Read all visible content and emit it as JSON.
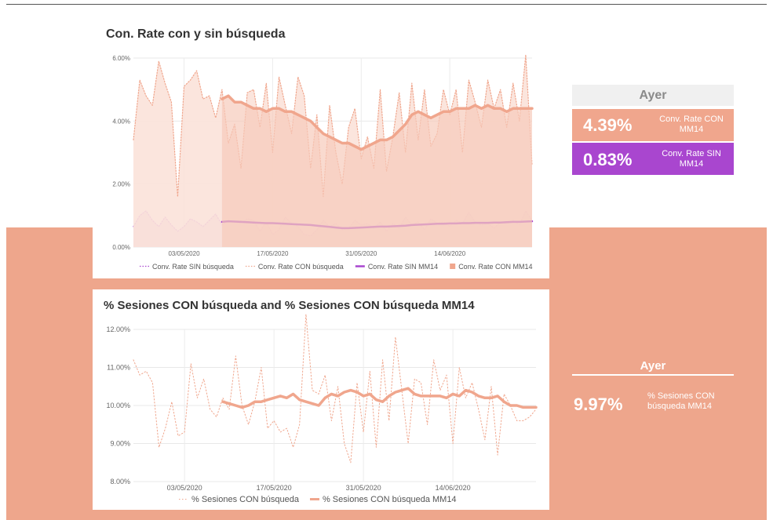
{
  "colors": {
    "band": "#eea68c",
    "salmon": "#f0a68d",
    "salmon_fill": "#f7cabb",
    "salmon_bg_fill": "#fbe2d9",
    "purple": "#a946cf",
    "purple_fill": "#e6bcd6",
    "ayer_bg": "#f0f0f0",
    "ayer_text": "#8a8a8a"
  },
  "chart_data": [
    {
      "type": "area",
      "title": "Con. Rate con y sin búsqueda",
      "xlabel": "",
      "ylabel": "",
      "x_ticks": [
        "03/05/2020",
        "17/05/2020",
        "31/05/2020",
        "14/06/2020"
      ],
      "y_ticks": [
        "0.00%",
        "2.00%",
        "4.00%",
        "6.00%"
      ],
      "ylim": [
        0,
        6
      ],
      "y_unit": "%",
      "x_start": "2020-04-25",
      "x_end": "2020-06-27",
      "grid": true,
      "legend_position": "bottom",
      "series": [
        {
          "name": "Conv. Rate SIN búsqueda",
          "style": "dotted-line-area",
          "values": [
            0.65,
            1.0,
            1.15,
            0.85,
            0.65,
            0.95,
            0.7,
            0.5,
            0.65,
            0.9,
            0.8,
            0.65,
            0.85,
            1.05,
            0.7,
            0.85,
            0.8,
            0.75,
            0.9,
            0.85,
            0.5,
            0.8,
            0.4,
            0.55,
            0.95,
            0.75,
            0.65,
            0.4,
            0.35,
            0.55,
            0.85,
            0.65,
            0.75,
            0.55,
            0.6,
            0.85,
            0.7,
            0.75,
            0.6,
            0.8,
            0.5,
            0.75,
            0.6,
            0.95,
            0.7,
            0.8,
            0.55,
            0.9,
            0.75,
            0.8,
            0.65,
            0.85,
            0.75,
            1.1,
            0.8,
            0.7,
            0.75,
            0.6,
            0.8,
            0.75,
            0.85,
            0.7,
            1.15,
            0.85
          ]
        },
        {
          "name": "Conv. Rate CON búsqueda",
          "style": "dotted-line-area",
          "values": [
            3.4,
            5.3,
            4.8,
            4.5,
            5.9,
            5.2,
            4.6,
            1.6,
            5.1,
            5.3,
            5.6,
            4.7,
            4.8,
            4.1,
            5.0,
            3.3,
            3.9,
            2.5,
            4.9,
            5.0,
            3.8,
            5.2,
            3.0,
            5.4,
            4.5,
            3.6,
            5.4,
            4.8,
            2.5,
            4.2,
            1.6,
            4.5,
            3.0,
            2.0,
            3.8,
            4.4,
            2.8,
            3.5,
            2.5,
            5.0,
            2.4,
            3.5,
            4.9,
            3.0,
            5.2,
            3.4,
            5.0,
            3.2,
            3.6,
            5.0,
            4.2,
            5.0,
            3.0,
            5.3,
            4.6,
            3.8,
            5.3,
            4.4,
            5.0,
            3.8,
            5.2,
            4.0,
            6.1,
            2.6
          ]
        },
        {
          "name": "Conv. Rate SIN MM14",
          "style": "solid-line",
          "start_index": 14,
          "values": [
            0.8,
            0.82,
            0.81,
            0.8,
            0.79,
            0.78,
            0.77,
            0.76,
            0.76,
            0.75,
            0.74,
            0.73,
            0.72,
            0.71,
            0.7,
            0.68,
            0.66,
            0.64,
            0.62,
            0.6,
            0.6,
            0.61,
            0.62,
            0.63,
            0.64,
            0.65,
            0.65,
            0.66,
            0.67,
            0.68,
            0.7,
            0.71,
            0.72,
            0.73,
            0.74,
            0.74,
            0.75,
            0.75,
            0.76,
            0.76,
            0.77,
            0.77,
            0.77,
            0.78,
            0.78,
            0.79,
            0.8,
            0.8,
            0.81,
            0.82
          ]
        },
        {
          "name": "Conv. Rate CON MM14",
          "style": "solid-line-area",
          "start_index": 14,
          "values": [
            4.7,
            4.8,
            4.6,
            4.6,
            4.5,
            4.4,
            4.4,
            4.3,
            4.4,
            4.4,
            4.3,
            4.3,
            4.2,
            4.1,
            4.0,
            3.8,
            3.6,
            3.5,
            3.4,
            3.3,
            3.3,
            3.2,
            3.1,
            3.2,
            3.3,
            3.4,
            3.4,
            3.5,
            3.7,
            3.9,
            4.2,
            4.3,
            4.2,
            4.1,
            4.2,
            4.3,
            4.3,
            4.4,
            4.4,
            4.4,
            4.5,
            4.4,
            4.5,
            4.4,
            4.4,
            4.3,
            4.4,
            4.4,
            4.4,
            4.4
          ]
        }
      ]
    },
    {
      "type": "line",
      "title": "% Sesiones CON búsqueda and % Sesiones CON búsqueda MM14",
      "xlabel": "",
      "ylabel": "",
      "x_ticks": [
        "03/05/2020",
        "17/05/2020",
        "31/05/2020",
        "14/06/2020"
      ],
      "y_ticks": [
        "8.00%",
        "9.00%",
        "10.00%",
        "11.00%",
        "12.00%"
      ],
      "ylim": [
        8,
        12
      ],
      "y_unit": "%",
      "x_start": "2020-04-25",
      "x_end": "2020-06-27",
      "grid": true,
      "legend_position": "bottom",
      "series": [
        {
          "name": "% Sesiones CON búsqueda",
          "style": "dotted-line",
          "values": [
            11.2,
            10.8,
            10.9,
            10.6,
            8.9,
            9.4,
            10.1,
            9.2,
            9.3,
            11.1,
            10.2,
            10.7,
            9.9,
            9.7,
            10.2,
            9.9,
            11.3,
            10.0,
            9.5,
            10.1,
            11.0,
            9.4,
            9.6,
            9.3,
            9.4,
            8.9,
            9.5,
            12.4,
            10.4,
            10.3,
            10.8,
            9.6,
            10.5,
            9.0,
            8.5,
            10.6,
            9.3,
            10.9,
            8.9,
            11.2,
            9.6,
            11.8,
            10.4,
            9.0,
            10.7,
            10.6,
            9.5,
            11.2,
            10.4,
            10.8,
            9.0,
            11.0,
            10.2,
            10.6,
            9.9,
            9.1,
            10.5,
            8.7,
            10.3,
            10.0,
            9.6,
            9.6,
            9.7,
            9.9
          ]
        },
        {
          "name": "% Sesiones CON búsqueda MM14",
          "style": "solid-line",
          "start_index": 14,
          "values": [
            10.1,
            10.05,
            10.0,
            9.95,
            10.0,
            10.1,
            10.1,
            10.15,
            10.2,
            10.25,
            10.2,
            10.3,
            10.15,
            10.1,
            10.05,
            10.0,
            10.2,
            10.3,
            10.25,
            10.35,
            10.4,
            10.35,
            10.25,
            10.3,
            10.15,
            10.1,
            10.25,
            10.35,
            10.4,
            10.45,
            10.3,
            10.25,
            10.25,
            10.25,
            10.25,
            10.2,
            10.3,
            10.25,
            10.4,
            10.35,
            10.25,
            10.2,
            10.2,
            10.25,
            10.1,
            10.0,
            10.0,
            9.95,
            9.95,
            9.95
          ]
        }
      ]
    }
  ],
  "kpi1": {
    "header": "Ayer",
    "rows": [
      {
        "value": "4.39%",
        "label": "Conv. Rate CON MM14"
      },
      {
        "value": "0.83%",
        "label": "Conv. Rate SIN MM14"
      }
    ]
  },
  "kpi2": {
    "header": "Ayer",
    "value": "9.97%",
    "label": "% Sesiones CON búsqueda MM14"
  }
}
